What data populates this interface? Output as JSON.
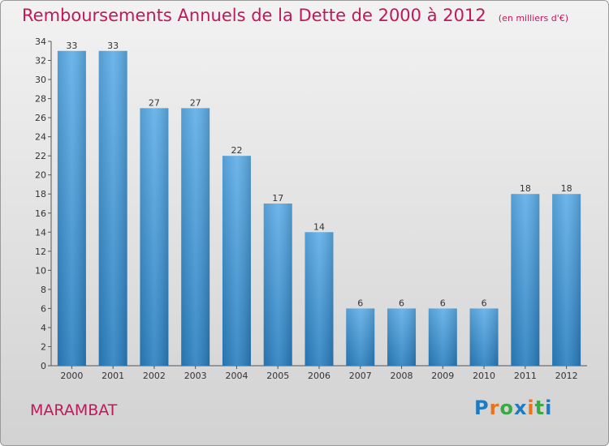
{
  "chart_data": {
    "type": "bar",
    "title": "Remboursements Annuels de la Dette de 2000 à 2012",
    "unit_note": "(en milliers d'€)",
    "categories": [
      "2000",
      "2001",
      "2002",
      "2003",
      "2004",
      "2005",
      "2006",
      "2007",
      "2008",
      "2009",
      "2010",
      "2011",
      "2012"
    ],
    "values": [
      33,
      33,
      27,
      27,
      22,
      17,
      14,
      6,
      6,
      6,
      6,
      18,
      18
    ],
    "ylim": [
      0,
      34
    ],
    "yticks": [
      0,
      2,
      4,
      6,
      8,
      10,
      12,
      14,
      16,
      18,
      20,
      22,
      24,
      26,
      28,
      30,
      32,
      34
    ],
    "xlabel": "",
    "ylabel": "",
    "bar_color": "#4f9fdc",
    "grid": false
  },
  "footer": {
    "town": "MARAMBAT",
    "logo_letters": [
      "P",
      "r",
      "o",
      "x",
      "i",
      "t",
      "i"
    ],
    "logo_colors": [
      "#1f7bc1",
      "#e8731c",
      "#3aa845",
      "#1f7bc1",
      "#e8731c",
      "#3aa845",
      "#1f7bc1"
    ]
  }
}
